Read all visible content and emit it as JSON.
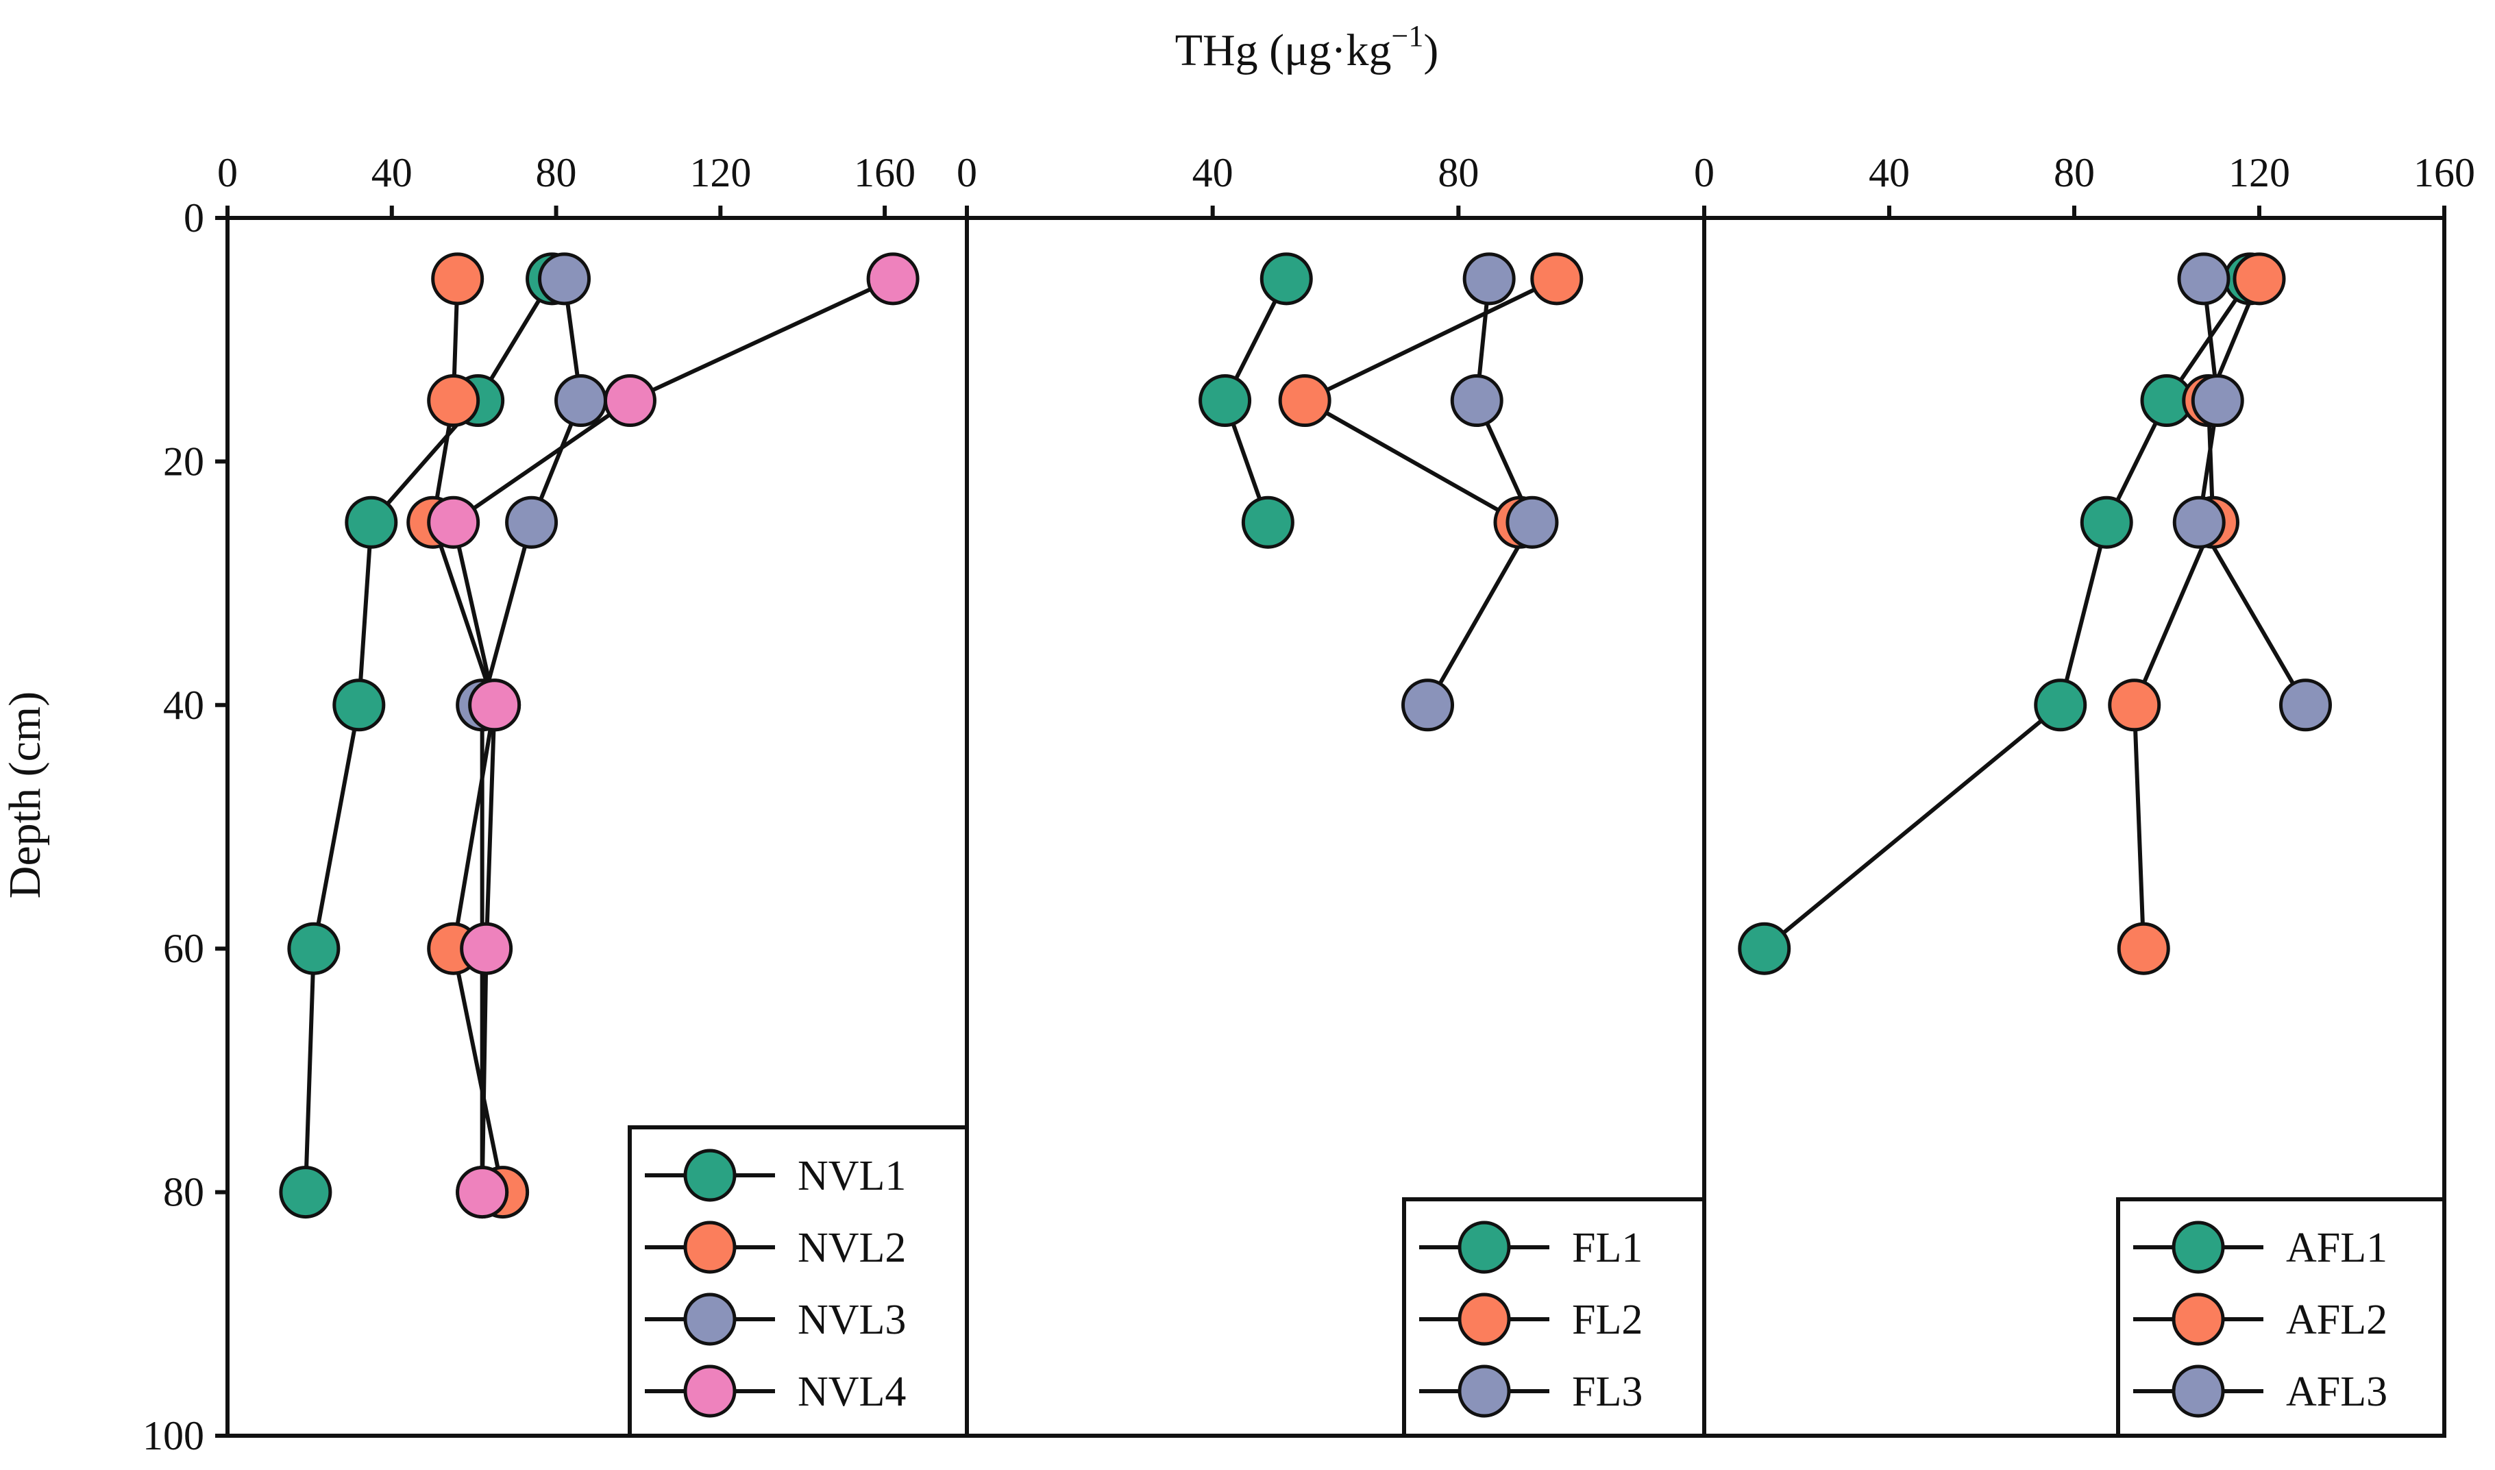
{
  "figure": {
    "x_title": "THg (μg·kg",
    "x_title_sup": "−1",
    "x_title_close": ")",
    "y_title": "Depth (cm)",
    "y_ticks": [
      "0",
      "20",
      "40",
      "60",
      "80",
      "100"
    ]
  },
  "colors": {
    "series1": "#2aa283",
    "series2": "#fb7e5c",
    "series3": "#8a93ba",
    "series4": "#ee82bd",
    "frame": "#111111"
  },
  "chart_data": [
    {
      "type": "line",
      "title": "",
      "xlabel": "THg (μg·kg⁻¹)",
      "ylabel": "Depth (cm)",
      "xlim": [
        0,
        180
      ],
      "ylim": [
        100,
        0
      ],
      "x_ticks": [
        "0",
        "40",
        "80",
        "120",
        "160"
      ],
      "legend": "bottom-right",
      "series": [
        {
          "name": "NVL1",
          "color": "#2aa283",
          "points": [
            [
              79,
              5
            ],
            [
              61,
              15
            ],
            [
              35,
              25
            ],
            [
              32,
              40
            ],
            [
              21,
              60
            ],
            [
              19,
              80
            ]
          ]
        },
        {
          "name": "NVL2",
          "color": "#fb7e5c",
          "points": [
            [
              56,
              5
            ],
            [
              55,
              15
            ],
            [
              50,
              25
            ],
            [
              65,
              40
            ],
            [
              55,
              60
            ],
            [
              67,
              80
            ]
          ]
        },
        {
          "name": "NVL3",
          "color": "#8a93ba",
          "points": [
            [
              82,
              5
            ],
            [
              86,
              15
            ],
            [
              74,
              25
            ],
            [
              62,
              40
            ],
            [
              62,
              80
            ]
          ]
        },
        {
          "name": "NVL4",
          "color": "#ee82bd",
          "points": [
            [
              162,
              5
            ],
            [
              98,
              15
            ],
            [
              55,
              25
            ],
            [
              65,
              40
            ],
            [
              63,
              60
            ],
            [
              62,
              80
            ]
          ]
        }
      ]
    },
    {
      "type": "line",
      "title": "",
      "xlabel": "THg (μg·kg⁻¹)",
      "ylabel": "",
      "xlim": [
        0,
        120
      ],
      "ylim": [
        100,
        0
      ],
      "x_ticks": [
        "0",
        "40",
        "80"
      ],
      "legend": "bottom-right",
      "series": [
        {
          "name": "FL1",
          "color": "#2aa283",
          "points": [
            [
              52,
              5
            ],
            [
              42,
              15
            ],
            [
              49,
              25
            ]
          ]
        },
        {
          "name": "FL2",
          "color": "#fb7e5c",
          "points": [
            [
              96,
              5
            ],
            [
              55,
              15
            ],
            [
              90,
              25
            ]
          ]
        },
        {
          "name": "FL3",
          "color": "#8a93ba",
          "points": [
            [
              85,
              5
            ],
            [
              83,
              15
            ],
            [
              92,
              25
            ],
            [
              75,
              40
            ]
          ]
        }
      ]
    },
    {
      "type": "line",
      "title": "",
      "xlabel": "THg (μg·kg⁻¹)",
      "ylabel": "",
      "xlim": [
        0,
        160
      ],
      "ylim": [
        100,
        0
      ],
      "x_ticks": [
        "0",
        "40",
        "80",
        "120",
        "160"
      ],
      "legend": "bottom-right",
      "series": [
        {
          "name": "AFL1",
          "color": "#2aa283",
          "points": [
            [
              118,
              5
            ],
            [
              100,
              15
            ],
            [
              87,
              25
            ],
            [
              77,
              40
            ],
            [
              13,
              60
            ]
          ]
        },
        {
          "name": "AFL2",
          "color": "#fb7e5c",
          "points": [
            [
              120,
              5
            ],
            [
              109,
              15
            ],
            [
              110,
              25
            ],
            [
              93,
              40
            ],
            [
              95,
              60
            ]
          ]
        },
        {
          "name": "AFL3",
          "color": "#8a93ba",
          "points": [
            [
              108,
              5
            ],
            [
              111,
              15
            ],
            [
              107,
              25
            ],
            [
              130,
              40
            ]
          ]
        }
      ]
    }
  ]
}
